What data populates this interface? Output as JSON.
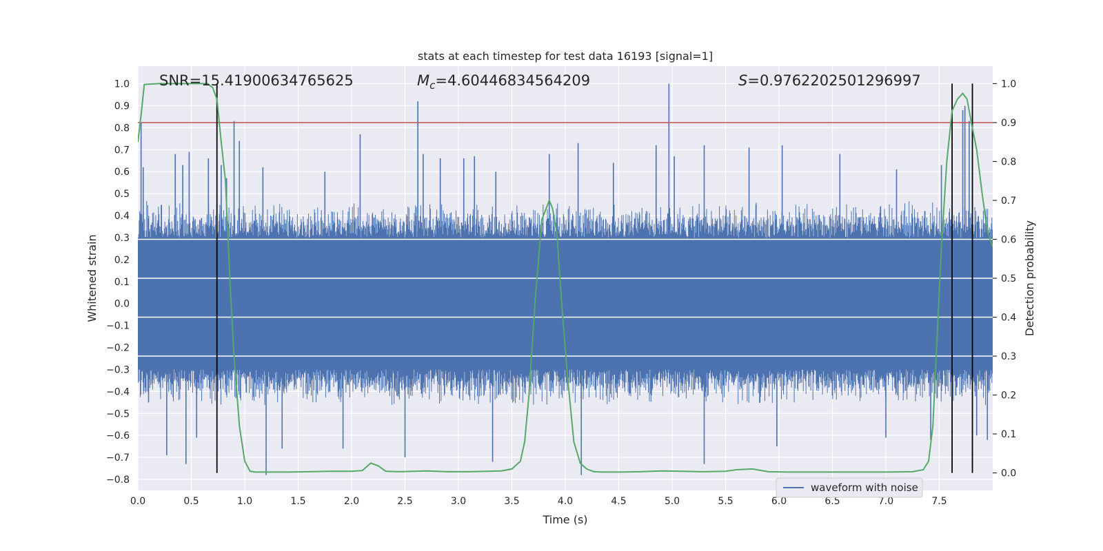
{
  "chart_data": {
    "type": "line",
    "title": "stats at each timestep for test data 16193 [signal=1]",
    "xlabel": "Time (s)",
    "ylabel": "Whitened strain",
    "y2label": "Detection probability",
    "xlim": [
      0.0,
      8.0
    ],
    "ylim": [
      -0.85,
      1.08
    ],
    "y2lim": [
      -0.045,
      1.045
    ],
    "xticks": [
      "0.0",
      "0.5",
      "1.0",
      "1.5",
      "2.0",
      "2.5",
      "3.0",
      "3.5",
      "4.0",
      "4.5",
      "5.0",
      "5.5",
      "6.0",
      "6.5",
      "7.0",
      "7.5"
    ],
    "yticks": [
      "1.0",
      "0.9",
      "0.8",
      "0.7",
      "0.6",
      "0.5",
      "0.4",
      "0.3",
      "0.2",
      "0.1",
      "0.0",
      "−0.1",
      "−0.2",
      "−0.3",
      "−0.4",
      "−0.5",
      "−0.6",
      "−0.7",
      "−0.8"
    ],
    "y2ticks": [
      "1.0",
      "0.9",
      "0.8",
      "0.7",
      "0.6",
      "0.5",
      "0.4",
      "0.3",
      "0.2",
      "0.1",
      "0.0"
    ],
    "grid": true,
    "legend": {
      "position": "lower-right",
      "entries": [
        "waveform with noise"
      ]
    },
    "annotations": {
      "snr": "SNR=15.41900634765625",
      "mc_symbol": "M",
      "mc_sub": "c",
      "mc_value": "=4.60446834564209",
      "s_symbol": "S",
      "s_value": "=0.9762202501296997"
    },
    "threshold_y2": 0.9,
    "vertical_lines_x": [
      0.74,
      7.62,
      7.81
    ],
    "waveform": {
      "name": "waveform with noise",
      "color": "#4c72b0",
      "n_samples": 1600,
      "core_band": 0.3,
      "envelope_top": 0.47,
      "envelope_bottom": -0.47,
      "spikes": [
        {
          "t": 0.03,
          "v": 0.82
        },
        {
          "t": 0.05,
          "v": 0.62
        },
        {
          "t": 0.1,
          "v": -0.45
        },
        {
          "t": 0.27,
          "v": -0.69
        },
        {
          "t": 0.35,
          "v": 0.68
        },
        {
          "t": 0.42,
          "v": 0.63
        },
        {
          "t": 0.48,
          "v": 0.69
        },
        {
          "t": 0.45,
          "v": -0.73
        },
        {
          "t": 0.55,
          "v": -0.61
        },
        {
          "t": 0.66,
          "v": 0.66
        },
        {
          "t": 0.78,
          "v": 0.63
        },
        {
          "t": 0.83,
          "v": 0.57
        },
        {
          "t": 0.9,
          "v": 0.83
        },
        {
          "t": 0.95,
          "v": 0.74
        },
        {
          "t": 1.17,
          "v": 0.62
        },
        {
          "t": 1.2,
          "v": -0.78
        },
        {
          "t": 1.35,
          "v": -0.66
        },
        {
          "t": 1.75,
          "v": 0.6
        },
        {
          "t": 1.92,
          "v": -0.66
        },
        {
          "t": 2.08,
          "v": 0.77
        },
        {
          "t": 2.5,
          "v": -0.7
        },
        {
          "t": 2.62,
          "v": 0.92
        },
        {
          "t": 2.67,
          "v": 0.68
        },
        {
          "t": 2.83,
          "v": 0.66
        },
        {
          "t": 3.05,
          "v": 0.66
        },
        {
          "t": 3.15,
          "v": 0.67
        },
        {
          "t": 3.32,
          "v": -0.72
        },
        {
          "t": 3.35,
          "v": 0.6
        },
        {
          "t": 3.85,
          "v": 0.68
        },
        {
          "t": 4.12,
          "v": 0.73
        },
        {
          "t": 4.15,
          "v": -0.78
        },
        {
          "t": 4.45,
          "v": 0.64
        },
        {
          "t": 4.85,
          "v": 0.72
        },
        {
          "t": 4.97,
          "v": 1.0
        },
        {
          "t": 5.02,
          "v": 0.67
        },
        {
          "t": 5.3,
          "v": -0.73
        },
        {
          "t": 5.3,
          "v": 0.72
        },
        {
          "t": 5.72,
          "v": 0.71
        },
        {
          "t": 5.98,
          "v": -0.65
        },
        {
          "t": 6.03,
          "v": 0.72
        },
        {
          "t": 6.57,
          "v": 0.68
        },
        {
          "t": 7.0,
          "v": -0.61
        },
        {
          "t": 7.1,
          "v": 0.61
        },
        {
          "t": 7.42,
          "v": -0.62
        },
        {
          "t": 7.52,
          "v": 0.63
        },
        {
          "t": 7.72,
          "v": 0.88
        },
        {
          "t": 7.74,
          "v": 0.9
        },
        {
          "t": 7.78,
          "v": 0.83
        },
        {
          "t": 7.85,
          "v": -0.6
        },
        {
          "t": 7.95,
          "v": -0.62
        }
      ]
    },
    "probability": {
      "color": "#55a868",
      "x": [
        0.0,
        0.03,
        0.06,
        0.2,
        0.4,
        0.55,
        0.65,
        0.7,
        0.74,
        0.78,
        0.82,
        0.86,
        0.9,
        0.95,
        1.0,
        1.05,
        1.1,
        1.2,
        1.4,
        1.6,
        1.8,
        2.0,
        2.1,
        2.18,
        2.25,
        2.32,
        2.45,
        2.7,
        2.9,
        3.1,
        3.4,
        3.5,
        3.58,
        3.62,
        3.66,
        3.72,
        3.78,
        3.85,
        3.88,
        3.92,
        3.97,
        4.02,
        4.08,
        4.14,
        4.2,
        4.27,
        4.35,
        4.5,
        4.7,
        4.9,
        5.1,
        5.3,
        5.5,
        5.6,
        5.75,
        5.9,
        6.1,
        6.5,
        7.0,
        7.25,
        7.35,
        7.4,
        7.44,
        7.48,
        7.52,
        7.57,
        7.62,
        7.67,
        7.72,
        7.76,
        7.8,
        7.85,
        7.9,
        7.95,
        8.0
      ],
      "y": [
        0.85,
        0.92,
        0.998,
        1.0,
        1.0,
        1.0,
        1.0,
        0.99,
        0.96,
        0.85,
        0.75,
        0.5,
        0.3,
        0.12,
        0.03,
        0.004,
        0.002,
        0.002,
        0.002,
        0.003,
        0.004,
        0.004,
        0.006,
        0.025,
        0.018,
        0.004,
        0.003,
        0.005,
        0.003,
        0.003,
        0.005,
        0.01,
        0.03,
        0.08,
        0.2,
        0.45,
        0.65,
        0.7,
        0.68,
        0.62,
        0.42,
        0.25,
        0.08,
        0.025,
        0.01,
        0.003,
        0.002,
        0.002,
        0.003,
        0.005,
        0.004,
        0.003,
        0.004,
        0.008,
        0.01,
        0.003,
        0.002,
        0.002,
        0.002,
        0.003,
        0.008,
        0.03,
        0.12,
        0.35,
        0.58,
        0.8,
        0.93,
        0.96,
        0.975,
        0.96,
        0.9,
        0.83,
        0.72,
        0.62,
        0.58
      ]
    }
  }
}
